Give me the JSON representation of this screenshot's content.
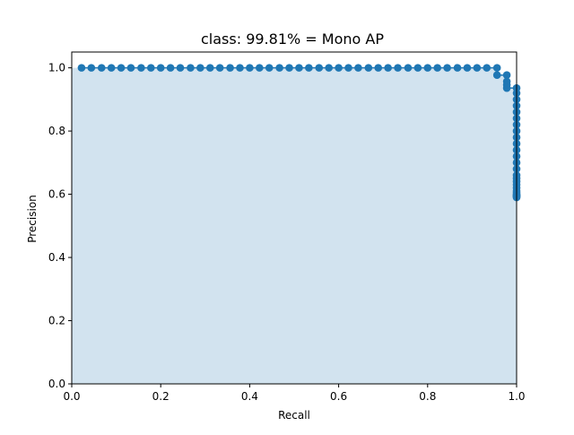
{
  "chart_data": {
    "type": "area",
    "title": "class: 99.81% = Mono AP",
    "xlabel": "Recall",
    "ylabel": "Precision",
    "xlim": [
      0.0,
      1.0
    ],
    "ylim": [
      0.0,
      1.05
    ],
    "xticks": [
      "0.0",
      "0.2",
      "0.4",
      "0.6",
      "0.8",
      "1.0"
    ],
    "yticks": [
      "0.0",
      "0.2",
      "0.4",
      "0.6",
      "0.8",
      "1.0"
    ],
    "grid": false,
    "colors": {
      "line": "#1f77b4",
      "marker": "#1f77b4",
      "fill": "#d2e3ef"
    },
    "series": [
      {
        "x": [
          0.022,
          0.044,
          0.067,
          0.089,
          0.111,
          0.133,
          0.156,
          0.178,
          0.2,
          0.222,
          0.244,
          0.267,
          0.289,
          0.311,
          0.333,
          0.356,
          0.378,
          0.4,
          0.422,
          0.444,
          0.467,
          0.489,
          0.511,
          0.533,
          0.556,
          0.578,
          0.6,
          0.622,
          0.644,
          0.667,
          0.689,
          0.711,
          0.733,
          0.756,
          0.778,
          0.8,
          0.822,
          0.844,
          0.867,
          0.889,
          0.911,
          0.933,
          0.956,
          0.956,
          0.978,
          0.978,
          0.978,
          0.978,
          1.0,
          1.0,
          1.0,
          1.0,
          1.0,
          1.0,
          1.0,
          1.0,
          1.0,
          1.0,
          1.0,
          1.0,
          1.0,
          1.0,
          1.0,
          1.0,
          1.0,
          1.0,
          1.0,
          1.0,
          1.0,
          1.0,
          1.0,
          1.0,
          1.0,
          1.0,
          1.0
        ],
        "y": [
          1.0,
          1.0,
          1.0,
          1.0,
          1.0,
          1.0,
          1.0,
          1.0,
          1.0,
          1.0,
          1.0,
          1.0,
          1.0,
          1.0,
          1.0,
          1.0,
          1.0,
          1.0,
          1.0,
          1.0,
          1.0,
          1.0,
          1.0,
          1.0,
          1.0,
          1.0,
          1.0,
          1.0,
          1.0,
          1.0,
          1.0,
          1.0,
          1.0,
          1.0,
          1.0,
          1.0,
          1.0,
          1.0,
          1.0,
          1.0,
          1.0,
          1.0,
          1.0,
          0.977,
          0.977,
          0.957,
          0.946,
          0.936,
          0.936,
          0.92,
          0.9,
          0.88,
          0.86,
          0.84,
          0.82,
          0.8,
          0.78,
          0.76,
          0.74,
          0.72,
          0.7,
          0.68,
          0.66,
          0.65,
          0.64,
          0.63,
          0.62,
          0.61,
          0.605,
          0.6,
          0.598,
          0.596,
          0.594,
          0.592,
          0.59
        ]
      }
    ]
  }
}
